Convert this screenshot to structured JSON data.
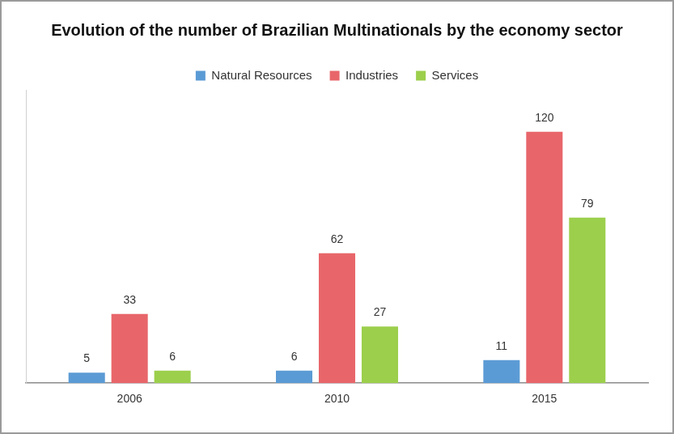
{
  "chart_data": {
    "type": "bar",
    "title": "Evolution of the number of Brazilian Multinationals by the economy sector",
    "categories": [
      "2006",
      "2010",
      "2015"
    ],
    "series": [
      {
        "name": "Natural Resources",
        "color": "#5b9bd5",
        "values": [
          5,
          6,
          11
        ]
      },
      {
        "name": "Industries",
        "color": "#e8666a",
        "values": [
          33,
          62,
          120
        ]
      },
      {
        "name": "Services",
        "color": "#9ccf4c",
        "values": [
          6,
          27,
          79
        ]
      }
    ],
    "ylim": [
      0,
      140
    ],
    "grid": false,
    "legend": "top",
    "data_labels": true,
    "tick_labels": "x"
  }
}
